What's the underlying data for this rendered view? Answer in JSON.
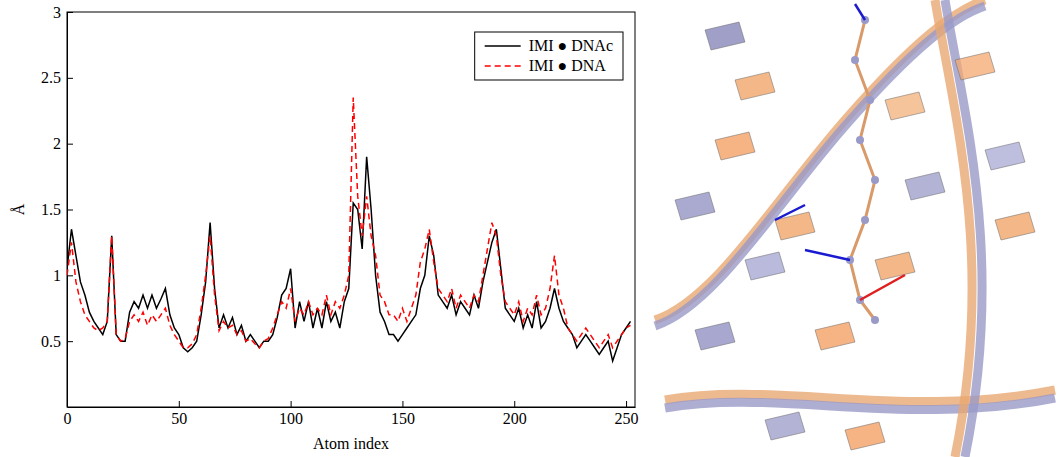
{
  "chart_data": {
    "type": "line",
    "x_label": "Atom index",
    "y_label": "Å",
    "xlim": [
      0,
      254
    ],
    "xticks": [
      0,
      50,
      100,
      150,
      200,
      250
    ],
    "ylim": [
      0,
      3
    ],
    "yticks": [
      0.5,
      1,
      1.5,
      2,
      2.5,
      3
    ],
    "legend": "upper right",
    "x": [
      0,
      2,
      4,
      6,
      8,
      10,
      12,
      14,
      16,
      18,
      20,
      22,
      24,
      26,
      28,
      30,
      32,
      34,
      36,
      38,
      40,
      42,
      44,
      46,
      48,
      50,
      52,
      54,
      56,
      58,
      60,
      62,
      64,
      66,
      68,
      70,
      72,
      74,
      76,
      78,
      80,
      82,
      84,
      86,
      88,
      90,
      92,
      94,
      96,
      98,
      100,
      102,
      104,
      106,
      108,
      110,
      112,
      114,
      116,
      118,
      120,
      122,
      124,
      126,
      128,
      130,
      132,
      134,
      136,
      138,
      140,
      142,
      144,
      146,
      148,
      150,
      152,
      154,
      156,
      158,
      160,
      162,
      164,
      166,
      168,
      170,
      172,
      174,
      176,
      178,
      180,
      182,
      184,
      186,
      188,
      190,
      192,
      194,
      196,
      198,
      200,
      202,
      204,
      206,
      208,
      210,
      212,
      214,
      216,
      218,
      220,
      222,
      224,
      226,
      228,
      230,
      232,
      234,
      236,
      238,
      240,
      242,
      244,
      246,
      248,
      250,
      252
    ],
    "series": [
      {
        "name": "IMI ● DNAc",
        "color": "#000000",
        "line_style": "solid",
        "values": [
          1.05,
          1.35,
          1.15,
          0.95,
          0.85,
          0.72,
          0.65,
          0.6,
          0.55,
          0.65,
          1.3,
          0.55,
          0.5,
          0.5,
          0.72,
          0.8,
          0.75,
          0.85,
          0.75,
          0.85,
          0.75,
          0.82,
          0.9,
          0.7,
          0.6,
          0.55,
          0.45,
          0.42,
          0.45,
          0.5,
          0.7,
          0.95,
          1.4,
          0.9,
          0.6,
          0.7,
          0.6,
          0.68,
          0.55,
          0.62,
          0.5,
          0.55,
          0.5,
          0.45,
          0.5,
          0.5,
          0.55,
          0.68,
          0.85,
          0.9,
          1.05,
          0.6,
          0.8,
          0.65,
          0.8,
          0.6,
          0.75,
          0.6,
          0.8,
          0.65,
          0.72,
          0.6,
          0.8,
          0.9,
          1.55,
          1.5,
          1.2,
          1.9,
          1.5,
          1.0,
          0.72,
          0.65,
          0.55,
          0.55,
          0.5,
          0.55,
          0.6,
          0.65,
          0.7,
          0.9,
          1.0,
          1.3,
          1.15,
          0.85,
          0.8,
          0.75,
          0.85,
          0.7,
          0.8,
          0.75,
          0.7,
          0.85,
          0.75,
          0.95,
          1.1,
          1.25,
          1.35,
          1.05,
          0.75,
          0.7,
          0.65,
          0.75,
          0.6,
          0.7,
          0.6,
          0.8,
          0.6,
          0.65,
          0.75,
          0.9,
          0.75,
          0.65,
          0.6,
          0.55,
          0.45,
          0.5,
          0.55,
          0.5,
          0.45,
          0.4,
          0.45,
          0.5,
          0.35,
          0.45,
          0.55,
          0.6,
          0.65
        ]
      },
      {
        "name": "IMI ● DNA",
        "color": "#ff0000",
        "line_style": "dashed",
        "values": [
          1.0,
          1.25,
          0.95,
          0.8,
          0.7,
          0.65,
          0.6,
          0.58,
          0.6,
          0.65,
          1.3,
          0.55,
          0.5,
          0.52,
          0.65,
          0.7,
          0.65,
          0.72,
          0.62,
          0.7,
          0.65,
          0.7,
          0.75,
          0.62,
          0.55,
          0.5,
          0.45,
          0.45,
          0.48,
          0.55,
          0.75,
          1.0,
          1.3,
          0.85,
          0.58,
          0.65,
          0.6,
          0.62,
          0.55,
          0.58,
          0.5,
          0.52,
          0.48,
          0.45,
          0.5,
          0.52,
          0.6,
          0.7,
          0.8,
          0.75,
          0.9,
          0.65,
          0.75,
          0.7,
          0.8,
          0.7,
          0.75,
          0.7,
          0.85,
          0.7,
          0.8,
          0.75,
          0.85,
          1.0,
          2.35,
          1.6,
          1.3,
          1.6,
          1.3,
          1.15,
          0.85,
          0.8,
          0.7,
          0.7,
          0.65,
          0.75,
          0.65,
          0.75,
          0.85,
          1.1,
          1.2,
          1.35,
          1.1,
          0.9,
          0.85,
          0.8,
          0.9,
          0.75,
          0.85,
          0.8,
          0.75,
          0.85,
          0.8,
          1.0,
          1.2,
          1.4,
          1.3,
          1.0,
          0.8,
          0.75,
          0.7,
          0.8,
          0.65,
          0.75,
          0.7,
          0.85,
          0.7,
          0.75,
          0.9,
          1.15,
          0.85,
          0.75,
          0.6,
          0.55,
          0.5,
          0.55,
          0.6,
          0.55,
          0.5,
          0.45,
          0.5,
          0.55,
          0.45,
          0.5,
          0.55,
          0.6,
          0.62
        ]
      }
    ]
  }
}
